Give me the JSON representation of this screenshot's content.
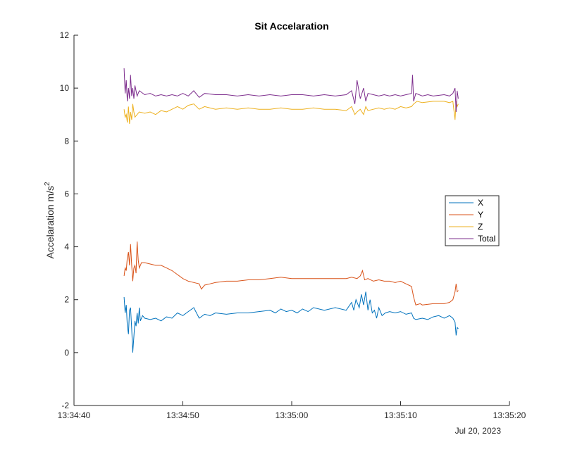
{
  "chart_data": {
    "type": "line",
    "title": "Sit Accelaration",
    "ylabel": "Accelaration m/s",
    "ylabel_superscript": "2",
    "xlabel": "",
    "x_date_label": "Jul 20, 2023",
    "x_unit": "seconds after 13:34:40",
    "xlim": [
      0,
      40
    ],
    "ylim": [
      -2,
      12
    ],
    "x_ticks": [
      {
        "value": 0,
        "label": "13:34:40"
      },
      {
        "value": 10,
        "label": "13:34:50"
      },
      {
        "value": 20,
        "label": "13:35:00"
      },
      {
        "value": 30,
        "label": "13:35:10"
      },
      {
        "value": 40,
        "label": "13:35:20"
      }
    ],
    "y_ticks": [
      {
        "value": -2,
        "label": "-2"
      },
      {
        "value": 0,
        "label": "0"
      },
      {
        "value": 2,
        "label": "2"
      },
      {
        "value": 4,
        "label": "4"
      },
      {
        "value": 6,
        "label": "6"
      },
      {
        "value": 8,
        "label": "8"
      },
      {
        "value": 10,
        "label": "10"
      },
      {
        "value": 12,
        "label": "12"
      }
    ],
    "grid": false,
    "legend_position": "right",
    "series": [
      {
        "name": "X",
        "color": "#0072BD",
        "points": [
          [
            4.6,
            2.1
          ],
          [
            4.7,
            1.5
          ],
          [
            4.8,
            1.8
          ],
          [
            4.9,
            1.0
          ],
          [
            5.0,
            0.7
          ],
          [
            5.1,
            1.6
          ],
          [
            5.2,
            1.7
          ],
          [
            5.3,
            0.9
          ],
          [
            5.4,
            0.0
          ],
          [
            5.5,
            0.6
          ],
          [
            5.6,
            1.2
          ],
          [
            5.7,
            1.0
          ],
          [
            5.8,
            1.5
          ],
          [
            5.9,
            1.1
          ],
          [
            6.0,
            1.7
          ],
          [
            6.1,
            1.2
          ],
          [
            6.3,
            1.4
          ],
          [
            6.5,
            1.3
          ],
          [
            7,
            1.25
          ],
          [
            7.5,
            1.3
          ],
          [
            8,
            1.2
          ],
          [
            8.5,
            1.35
          ],
          [
            9,
            1.3
          ],
          [
            9.5,
            1.5
          ],
          [
            10,
            1.4
          ],
          [
            10.5,
            1.55
          ],
          [
            11,
            1.7
          ],
          [
            11.5,
            1.3
          ],
          [
            12,
            1.45
          ],
          [
            12.5,
            1.4
          ],
          [
            13,
            1.5
          ],
          [
            14,
            1.45
          ],
          [
            15,
            1.5
          ],
          [
            16,
            1.5
          ],
          [
            17,
            1.55
          ],
          [
            18,
            1.6
          ],
          [
            18.5,
            1.5
          ],
          [
            19,
            1.65
          ],
          [
            19.5,
            1.55
          ],
          [
            20,
            1.6
          ],
          [
            20.5,
            1.5
          ],
          [
            21,
            1.65
          ],
          [
            21.5,
            1.55
          ],
          [
            22,
            1.7
          ],
          [
            23,
            1.6
          ],
          [
            24,
            1.7
          ],
          [
            25,
            1.6
          ],
          [
            25.5,
            1.9
          ],
          [
            25.7,
            1.6
          ],
          [
            25.9,
            2.0
          ],
          [
            26.2,
            1.7
          ],
          [
            26.4,
            2.2
          ],
          [
            26.6,
            1.8
          ],
          [
            26.8,
            2.3
          ],
          [
            27.0,
            1.6
          ],
          [
            27.2,
            2.0
          ],
          [
            27.4,
            1.5
          ],
          [
            27.6,
            1.6
          ],
          [
            27.8,
            1.3
          ],
          [
            28.0,
            1.7
          ],
          [
            28.3,
            1.4
          ],
          [
            28.6,
            1.5
          ],
          [
            29,
            1.55
          ],
          [
            29.5,
            1.5
          ],
          [
            30,
            1.55
          ],
          [
            30.5,
            1.45
          ],
          [
            31,
            1.5
          ],
          [
            31.2,
            1.3
          ],
          [
            31.4,
            1.25
          ],
          [
            32,
            1.3
          ],
          [
            32.5,
            1.25
          ],
          [
            33,
            1.35
          ],
          [
            33.5,
            1.4
          ],
          [
            34,
            1.3
          ],
          [
            34.5,
            1.4
          ],
          [
            34.8,
            1.3
          ],
          [
            35.0,
            1.15
          ],
          [
            35.1,
            0.65
          ],
          [
            35.2,
            0.95
          ],
          [
            35.3,
            0.9
          ]
        ]
      },
      {
        "name": "Y",
        "color": "#D95319",
        "points": [
          [
            4.6,
            2.9
          ],
          [
            4.7,
            3.2
          ],
          [
            4.8,
            3.1
          ],
          [
            4.9,
            3.6
          ],
          [
            5.0,
            3.8
          ],
          [
            5.1,
            3.3
          ],
          [
            5.2,
            4.1
          ],
          [
            5.3,
            3.3
          ],
          [
            5.4,
            2.7
          ],
          [
            5.5,
            3.2
          ],
          [
            5.6,
            3.3
          ],
          [
            5.7,
            3.0
          ],
          [
            5.8,
            4.2
          ],
          [
            5.9,
            3.5
          ],
          [
            6.0,
            3.2
          ],
          [
            6.2,
            3.4
          ],
          [
            6.5,
            3.4
          ],
          [
            7,
            3.35
          ],
          [
            7.5,
            3.3
          ],
          [
            8,
            3.3
          ],
          [
            8.5,
            3.2
          ],
          [
            9,
            3.1
          ],
          [
            9.5,
            2.95
          ],
          [
            10,
            2.8
          ],
          [
            10.5,
            2.7
          ],
          [
            11,
            2.65
          ],
          [
            11.5,
            2.6
          ],
          [
            11.7,
            2.4
          ],
          [
            12,
            2.55
          ],
          [
            12.5,
            2.6
          ],
          [
            13,
            2.65
          ],
          [
            14,
            2.7
          ],
          [
            15,
            2.7
          ],
          [
            16,
            2.75
          ],
          [
            17,
            2.75
          ],
          [
            18,
            2.8
          ],
          [
            19,
            2.85
          ],
          [
            20,
            2.8
          ],
          [
            21,
            2.8
          ],
          [
            22,
            2.8
          ],
          [
            23,
            2.8
          ],
          [
            24,
            2.8
          ],
          [
            25,
            2.8
          ],
          [
            25.5,
            2.85
          ],
          [
            26,
            2.8
          ],
          [
            26.3,
            2.9
          ],
          [
            26.5,
            3.1
          ],
          [
            26.7,
            2.75
          ],
          [
            27,
            2.8
          ],
          [
            27.5,
            2.7
          ],
          [
            28,
            2.75
          ],
          [
            28.5,
            2.7
          ],
          [
            29,
            2.7
          ],
          [
            29.5,
            2.65
          ],
          [
            30,
            2.7
          ],
          [
            30.5,
            2.6
          ],
          [
            31.0,
            2.5
          ],
          [
            31.2,
            2.1
          ],
          [
            31.4,
            1.8
          ],
          [
            31.8,
            1.85
          ],
          [
            32,
            1.8
          ],
          [
            33,
            1.85
          ],
          [
            34,
            1.85
          ],
          [
            34.5,
            1.9
          ],
          [
            34.8,
            2.0
          ],
          [
            35.0,
            2.3
          ],
          [
            35.1,
            2.6
          ],
          [
            35.2,
            2.3
          ],
          [
            35.3,
            2.35
          ]
        ]
      },
      {
        "name": "Z",
        "color": "#EDB120",
        "points": [
          [
            4.6,
            9.2
          ],
          [
            4.7,
            8.9
          ],
          [
            4.8,
            9.0
          ],
          [
            4.9,
            8.7
          ],
          [
            5.0,
            9.3
          ],
          [
            5.1,
            8.65
          ],
          [
            5.2,
            9.1
          ],
          [
            5.3,
            8.8
          ],
          [
            5.4,
            9.4
          ],
          [
            5.5,
            9.1
          ],
          [
            5.6,
            8.9
          ],
          [
            5.8,
            9.0
          ],
          [
            6.0,
            9.1
          ],
          [
            6.5,
            9.05
          ],
          [
            7,
            9.1
          ],
          [
            7.5,
            9.0
          ],
          [
            8,
            9.15
          ],
          [
            8.5,
            9.1
          ],
          [
            9,
            9.2
          ],
          [
            9.5,
            9.3
          ],
          [
            10,
            9.2
          ],
          [
            10.5,
            9.35
          ],
          [
            11,
            9.4
          ],
          [
            11.5,
            9.2
          ],
          [
            12,
            9.3
          ],
          [
            13,
            9.2
          ],
          [
            14,
            9.25
          ],
          [
            15,
            9.2
          ],
          [
            16,
            9.25
          ],
          [
            17,
            9.2
          ],
          [
            18,
            9.2
          ],
          [
            19,
            9.25
          ],
          [
            20,
            9.2
          ],
          [
            21,
            9.2
          ],
          [
            22,
            9.25
          ],
          [
            23,
            9.2
          ],
          [
            24,
            9.2
          ],
          [
            25,
            9.15
          ],
          [
            25.5,
            9.3
          ],
          [
            25.8,
            9.0
          ],
          [
            26,
            9.1
          ],
          [
            26.3,
            9.2
          ],
          [
            26.6,
            9.0
          ],
          [
            26.8,
            9.3
          ],
          [
            27,
            9.15
          ],
          [
            27.5,
            9.2
          ],
          [
            28,
            9.25
          ],
          [
            28.5,
            9.2
          ],
          [
            29,
            9.25
          ],
          [
            29.5,
            9.2
          ],
          [
            30,
            9.3
          ],
          [
            30.5,
            9.25
          ],
          [
            31,
            9.3
          ],
          [
            31.2,
            9.4
          ],
          [
            31.5,
            9.5
          ],
          [
            32,
            9.45
          ],
          [
            33,
            9.5
          ],
          [
            34,
            9.5
          ],
          [
            34.5,
            9.45
          ],
          [
            34.8,
            9.5
          ],
          [
            35.0,
            8.8
          ],
          [
            35.1,
            9.5
          ],
          [
            35.2,
            9.3
          ],
          [
            35.3,
            9.4
          ]
        ]
      },
      {
        "name": "Total",
        "color": "#7E2F8E",
        "points": [
          [
            4.6,
            10.75
          ],
          [
            4.7,
            9.8
          ],
          [
            4.8,
            10.3
          ],
          [
            4.9,
            9.5
          ],
          [
            5.0,
            10.0
          ],
          [
            5.1,
            9.6
          ],
          [
            5.2,
            10.5
          ],
          [
            5.3,
            9.7
          ],
          [
            5.4,
            10.0
          ],
          [
            5.5,
            9.6
          ],
          [
            5.6,
            10.1
          ],
          [
            5.8,
            9.7
          ],
          [
            6.0,
            9.9
          ],
          [
            6.5,
            9.75
          ],
          [
            7,
            9.8
          ],
          [
            7.5,
            9.7
          ],
          [
            8,
            9.75
          ],
          [
            8.5,
            9.7
          ],
          [
            9,
            9.75
          ],
          [
            9.5,
            9.7
          ],
          [
            10,
            9.8
          ],
          [
            10.5,
            9.7
          ],
          [
            11,
            9.9
          ],
          [
            11.5,
            9.65
          ],
          [
            12,
            9.8
          ],
          [
            13,
            9.75
          ],
          [
            14,
            9.75
          ],
          [
            15,
            9.7
          ],
          [
            16,
            9.75
          ],
          [
            17,
            9.7
          ],
          [
            18,
            9.75
          ],
          [
            19,
            9.7
          ],
          [
            20,
            9.75
          ],
          [
            21,
            9.75
          ],
          [
            22,
            9.7
          ],
          [
            23,
            9.75
          ],
          [
            24,
            9.7
          ],
          [
            25,
            9.75
          ],
          [
            25.5,
            9.9
          ],
          [
            25.8,
            9.4
          ],
          [
            26,
            10.3
          ],
          [
            26.3,
            9.6
          ],
          [
            26.6,
            10.0
          ],
          [
            26.8,
            9.5
          ],
          [
            27,
            9.8
          ],
          [
            27.5,
            9.75
          ],
          [
            28,
            9.7
          ],
          [
            28.5,
            9.75
          ],
          [
            29,
            9.7
          ],
          [
            29.5,
            9.75
          ],
          [
            30,
            9.7
          ],
          [
            30.5,
            9.75
          ],
          [
            31,
            9.8
          ],
          [
            31.1,
            10.5
          ],
          [
            31.2,
            9.5
          ],
          [
            31.4,
            9.8
          ],
          [
            32,
            9.7
          ],
          [
            32.5,
            9.75
          ],
          [
            33,
            9.7
          ],
          [
            34,
            9.75
          ],
          [
            34.5,
            9.7
          ],
          [
            34.8,
            9.8
          ],
          [
            35.0,
            10.0
          ],
          [
            35.1,
            9.1
          ],
          [
            35.2,
            9.9
          ],
          [
            35.3,
            9.6
          ]
        ]
      }
    ]
  }
}
